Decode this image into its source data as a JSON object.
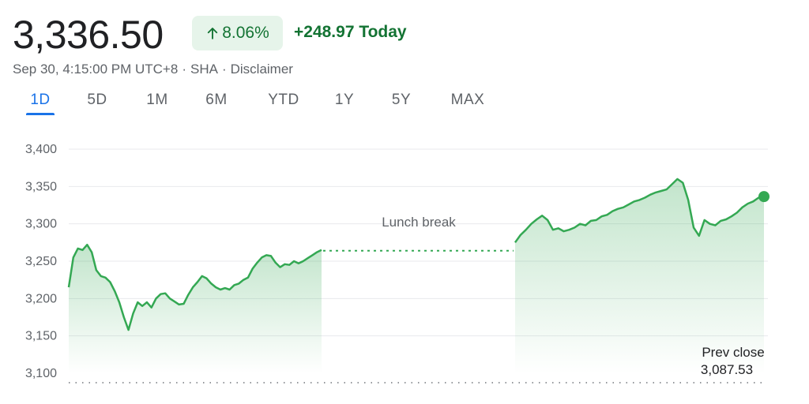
{
  "quote": {
    "price": "3,336.50",
    "change_percent": "8.06%",
    "change_abs": "+248.97 Today",
    "timestamp": "Sep 30, 4:15:00 PM UTC+8",
    "exchange": "SHA",
    "disclaimer": "Disclaimer",
    "up_icon": "arrow-up-icon",
    "accent_color": "#1a73e8",
    "up_color": "#137333",
    "line_color": "#34a853"
  },
  "tabs": [
    {
      "label": "1D",
      "active": true
    },
    {
      "label": "5D"
    },
    {
      "label": "1M"
    },
    {
      "label": "6M"
    },
    {
      "label": "YTD"
    },
    {
      "label": "1Y"
    },
    {
      "label": "5Y"
    },
    {
      "label": "MAX"
    }
  ],
  "chart_data": {
    "type": "area",
    "ylim": [
      3100,
      3400
    ],
    "y_ticks": [
      "3,400",
      "3,350",
      "3,300",
      "3,250",
      "3,200",
      "3,150",
      "3,100"
    ],
    "y_tick_values": [
      3400,
      3350,
      3300,
      3250,
      3200,
      3150,
      3100
    ],
    "grid": true,
    "gap_annotation": "Lunch break",
    "prev_close_label": "Prev close",
    "prev_close_value": "3,087.53",
    "prev_close": 3087.53,
    "series": [
      {
        "values": [
          3215,
          3255,
          3267,
          3265,
          3272,
          3262,
          3238,
          3230,
          3228,
          3222,
          3210,
          3195,
          3175,
          3158,
          3180,
          3195,
          3190,
          3195,
          3188,
          3200,
          3206,
          3207,
          3200,
          3196,
          3192,
          3193,
          3205,
          3215,
          3222,
          3230,
          3227,
          3220,
          3215,
          3212,
          3214,
          3212,
          3218,
          3220,
          3225,
          3228,
          3240,
          3248,
          3255,
          3258,
          3257,
          3248,
          3242,
          3246,
          3245,
          3250,
          3247,
          3250,
          3254,
          3258,
          3262,
          3265
        ]
      },
      {
        "values": [
          3275,
          3285,
          3292,
          3300,
          3306,
          3311,
          3305,
          3292,
          3294,
          3290,
          3292,
          3295,
          3300,
          3298,
          3304,
          3305,
          3310,
          3312,
          3317,
          3320,
          3322,
          3326,
          3330,
          3332,
          3335,
          3339,
          3342,
          3344,
          3346,
          3353,
          3360,
          3355,
          3332,
          3295,
          3284,
          3305,
          3300,
          3298,
          3304,
          3306,
          3310,
          3315,
          3322,
          3327,
          3330,
          3335,
          3336.5
        ]
      }
    ],
    "gap_level": 3264
  }
}
